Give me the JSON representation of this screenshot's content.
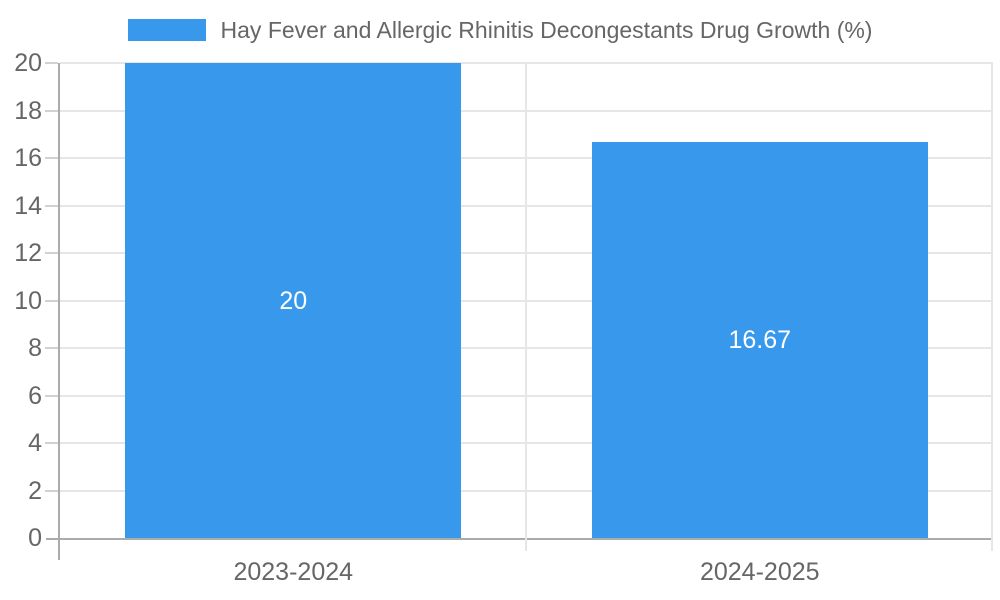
{
  "chart_data": {
    "type": "bar",
    "title": "Hay Fever and Allergic Rhinitis Decongestants Drug Growth (%)",
    "xlabel": "",
    "ylabel": "",
    "categories": [
      "2023-2024",
      "2024-2025"
    ],
    "series": [
      {
        "name": "Hay Fever and Allergic Rhinitis Decongestants Drug Growth (%)",
        "values": [
          20,
          16.67
        ],
        "value_labels": [
          "20",
          "16.67"
        ]
      }
    ],
    "ylim": [
      0,
      20
    ],
    "yticks": [
      0,
      2,
      4,
      6,
      8,
      10,
      12,
      14,
      16,
      18,
      20
    ],
    "grid": true,
    "legend_position": "top",
    "bar_color": "#3899EC",
    "value_label_color": "#ffffff",
    "tick_label_color": "#666666",
    "grid_color": "#e6e6e6",
    "axis_color": "#ababab"
  }
}
